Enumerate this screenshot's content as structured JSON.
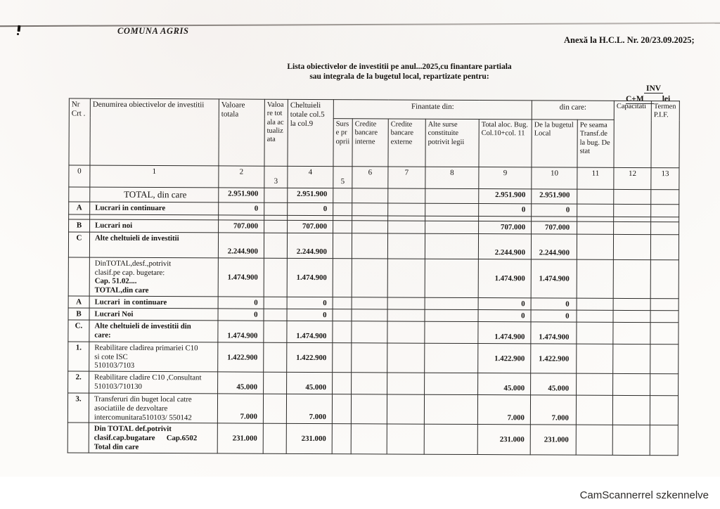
{
  "page": {
    "org": "COMUNA AGRIS",
    "annex": "Anexă la H.C.L. Nr. 20/23.09.2025;",
    "title1": "Lista obiectivelor de investitii pe anul...2025,cu finantare partiala",
    "title2": "sau  integrala de la bugetul local, repartizate pentru:",
    "inv": "INV",
    "cm": "C+M",
    "lei": "lei",
    "footer": "CamScannerrel szkennelve"
  },
  "table": {
    "groups": {
      "finantate": "Finantate din:",
      "din_care": "din care:"
    },
    "columns": [
      {
        "label": "Nr Crt .",
        "num": "0"
      },
      {
        "label": "Denumirea obiectivelor de investitii",
        "num": "1"
      },
      {
        "label": "Valoare totala",
        "num": "2"
      },
      {
        "label": "Valoare totala actualizata",
        "num": "3"
      },
      {
        "label": "Cheltuieli totale col.5 la col.9",
        "num": "4"
      },
      {
        "label": "Surse proprii",
        "num": "5"
      },
      {
        "label": "Credite bancare interne",
        "num": "6"
      },
      {
        "label": "Credite bancare externe",
        "num": "7"
      },
      {
        "label": "Alte surse constituite potrivit legii",
        "num": "8"
      },
      {
        "label": "Total aloc. Bug. Col.10+col. 11",
        "num": "9"
      },
      {
        "label": "De la bugetul Local",
        "num": "10"
      },
      {
        "label": "Pe seama Transf.de la bug. De stat",
        "num": "11"
      },
      {
        "label": "Capacitati",
        "num": "12"
      },
      {
        "label": "Termen P.I.F.",
        "num": "13"
      }
    ],
    "rows": [
      {
        "num": "",
        "name": "TOTAL, din care",
        "v2": "2.951.900",
        "v4": "2.951.900",
        "v9": "2.951.900",
        "v10": "2.951.900"
      },
      {
        "num": "A",
        "name": "Lucrari in continuare",
        "v2": "0",
        "v4": "0",
        "v9": "0",
        "v10": "0"
      },
      {
        "num": "",
        "name": "",
        "v2": "",
        "v4": "",
        "v9": "",
        "v10": ""
      },
      {
        "num": "B",
        "name": "Lucrari noi",
        "v2": "707.000",
        "v4": "707.000",
        "v9": "707.000",
        "v10": "707.000"
      },
      {
        "num": "C",
        "name": "Alte cheltuieli de investitii",
        "v2": "2.244.900",
        "v4": "2.244.900",
        "v9": "2.244.900",
        "v10": "2.244.900"
      },
      {
        "num": "",
        "name": "DinTOTAL,desf.,potrivit\nclasif.pe cap. bugetare:",
        "name2": "Cap. 51.02....\nTOTAL,din care",
        "v2": "1.474.900",
        "v4": "1.474.900",
        "v9": "1.474.900",
        "v10": "1.474.900"
      },
      {
        "num": "A",
        "name": "Lucrari  in continuare",
        "v2": "0",
        "v4": "0",
        "v9": "0",
        "v10": "0"
      },
      {
        "num": "B",
        "name": "Lucrari Noi",
        "v2": "0",
        "v4": "0",
        "v9": "0",
        "v10": "0"
      },
      {
        "num": "C.",
        "name": "Alte cheltuieli de investitii din\ncare:",
        "v2": "1.474.900",
        "v4": "1.474.900",
        "v9": "1.474.900",
        "v10": "1.474.900"
      },
      {
        "num": "1.",
        "name": "Reabilitare cladirea primariei C10\nsi cote ISC\n510103/7103",
        "v2": "1.422.900",
        "v4": "1.422.900",
        "v9": "1.422.900",
        "v10": "1.422.900"
      },
      {
        "num": "2.",
        "name": "Reabilitare cladire C10 ,Consultant\n510103/710130",
        "v2": "45.000",
        "v4": "45.000",
        "v9": "45.000",
        "v10": "45.000"
      },
      {
        "num": "3.",
        "name": "Transferuri din buget local catre\nasociatiile de dezvoltare\nintercomunitara510103/ 550142",
        "v2": "7.000",
        "v4": "7.000",
        "v9": "7.000",
        "v10": "7.000"
      },
      {
        "num": "",
        "name": "Din TOTAL def.potrivit\nclasif.cap.bugatare      Cap.6502\nTotal din care",
        "v2": "231.000",
        "v4": "231.000",
        "v9": "231.000",
        "v10": "231.000"
      }
    ]
  }
}
